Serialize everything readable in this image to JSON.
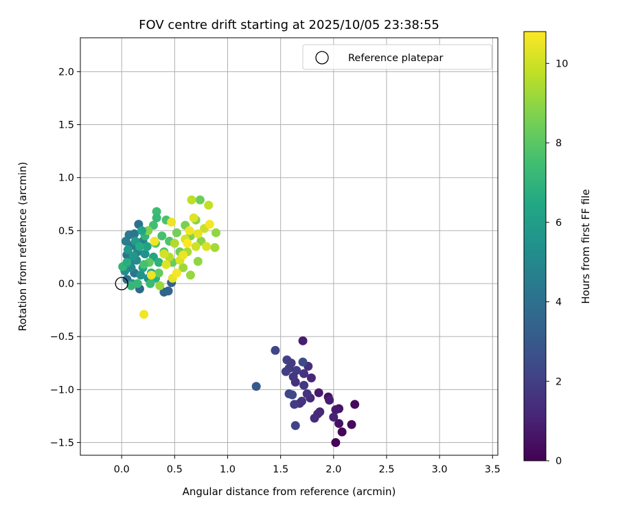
{
  "chart_data": {
    "type": "scatter",
    "title": "FOV centre drift starting at 2025/10/05 23:38:55",
    "xlabel": "Angular distance from reference (arcmin)",
    "ylabel": "Rotation from reference (arcmin)",
    "xlim": [
      -0.39,
      3.55
    ],
    "ylim": [
      -1.62,
      2.32
    ],
    "xticks": [
      0.0,
      0.5,
      1.0,
      1.5,
      2.0,
      2.5,
      3.0,
      3.5
    ],
    "xtick_labels": [
      "0.0",
      "0.5",
      "1.0",
      "1.5",
      "2.0",
      "2.5",
      "3.0",
      "3.5"
    ],
    "yticks": [
      -1.5,
      -1.0,
      -0.5,
      0.0,
      0.5,
      1.0,
      1.5,
      2.0
    ],
    "ytick_labels": [
      "−1.5",
      "−1.0",
      "−0.5",
      "0.0",
      "0.5",
      "1.0",
      "1.5",
      "2.0"
    ],
    "grid": true,
    "legend": {
      "position": "top-right",
      "entries": [
        "Reference platepar"
      ]
    },
    "reference_point": {
      "x": 0.0,
      "y": 0.0,
      "label": "Reference platepar"
    },
    "colorbar": {
      "label": "Hours from first FF file",
      "range": [
        0,
        10.8
      ],
      "ticks": [
        0,
        2,
        4,
        6,
        8,
        10
      ],
      "tick_labels": [
        "0",
        "2",
        "4",
        "6",
        "8",
        "10"
      ],
      "colormap": "viridis"
    },
    "points": [
      {
        "x": 2.02,
        "y": -1.5,
        "t": 0.1
      },
      {
        "x": 2.08,
        "y": -1.4,
        "t": 0.2
      },
      {
        "x": 2.17,
        "y": -1.33,
        "t": 0.3
      },
      {
        "x": 2.2,
        "y": -1.14,
        "t": 0.3
      },
      {
        "x": 2.05,
        "y": -1.32,
        "t": 0.5
      },
      {
        "x": 2.05,
        "y": -1.18,
        "t": 0.6
      },
      {
        "x": 2.02,
        "y": -1.19,
        "t": 0.8
      },
      {
        "x": 1.95,
        "y": -1.07,
        "t": 0.6
      },
      {
        "x": 1.96,
        "y": -1.1,
        "t": 0.9
      },
      {
        "x": 1.86,
        "y": -1.03,
        "t": 0.8
      },
      {
        "x": 1.71,
        "y": -0.54,
        "t": 0.9
      },
      {
        "x": 2.0,
        "y": -1.26,
        "t": 1.0
      },
      {
        "x": 1.87,
        "y": -1.21,
        "t": 1.2
      },
      {
        "x": 1.85,
        "y": -1.23,
        "t": 1.3
      },
      {
        "x": 1.82,
        "y": -1.27,
        "t": 1.4
      },
      {
        "x": 1.78,
        "y": -1.08,
        "t": 1.3
      },
      {
        "x": 1.79,
        "y": -0.89,
        "t": 1.2
      },
      {
        "x": 1.76,
        "y": -0.78,
        "t": 1.5
      },
      {
        "x": 1.72,
        "y": -0.85,
        "t": 1.6
      },
      {
        "x": 1.7,
        "y": -1.11,
        "t": 1.7
      },
      {
        "x": 1.72,
        "y": -0.96,
        "t": 1.8
      },
      {
        "x": 1.68,
        "y": -1.13,
        "t": 1.6
      },
      {
        "x": 1.65,
        "y": -0.82,
        "t": 1.9
      },
      {
        "x": 1.64,
        "y": -0.93,
        "t": 1.5
      },
      {
        "x": 1.62,
        "y": -0.88,
        "t": 1.7
      },
      {
        "x": 1.58,
        "y": -0.8,
        "t": 1.8
      },
      {
        "x": 1.55,
        "y": -0.83,
        "t": 2.0
      },
      {
        "x": 1.56,
        "y": -0.72,
        "t": 2.1
      },
      {
        "x": 1.6,
        "y": -0.75,
        "t": 1.9
      },
      {
        "x": 1.71,
        "y": -0.74,
        "t": 2.5
      },
      {
        "x": 1.58,
        "y": -1.04,
        "t": 2.2
      },
      {
        "x": 1.61,
        "y": -1.05,
        "t": 2.4
      },
      {
        "x": 1.63,
        "y": -1.14,
        "t": 1.9
      },
      {
        "x": 1.64,
        "y": -1.34,
        "t": 2.1
      },
      {
        "x": 1.45,
        "y": -0.63,
        "t": 2.3
      },
      {
        "x": 1.75,
        "y": -1.04,
        "t": 1.6
      },
      {
        "x": 1.27,
        "y": -0.97,
        "t": 3.0
      },
      {
        "x": 0.4,
        "y": -0.08,
        "t": 3.4
      },
      {
        "x": 0.44,
        "y": -0.07,
        "t": 3.5
      },
      {
        "x": 0.47,
        "y": 0.01,
        "t": 3.3
      },
      {
        "x": 0.17,
        "y": -0.05,
        "t": 3.6
      },
      {
        "x": 0.05,
        "y": 0.04,
        "t": 4.0
      },
      {
        "x": 0.12,
        "y": 0.1,
        "t": 4.2
      },
      {
        "x": 0.08,
        "y": 0.2,
        "t": 4.4
      },
      {
        "x": 0.05,
        "y": 0.27,
        "t": 4.1
      },
      {
        "x": 0.1,
        "y": 0.36,
        "t": 4.3
      },
      {
        "x": 0.04,
        "y": 0.4,
        "t": 4.6
      },
      {
        "x": 0.07,
        "y": 0.46,
        "t": 4.5
      },
      {
        "x": 0.12,
        "y": 0.47,
        "t": 4.2
      },
      {
        "x": 0.16,
        "y": 0.56,
        "t": 4.0
      },
      {
        "x": 0.2,
        "y": 0.4,
        "t": 4.7
      },
      {
        "x": 0.15,
        "y": 0.3,
        "t": 4.8
      },
      {
        "x": 0.09,
        "y": 0.15,
        "t": 5.0
      },
      {
        "x": 0.03,
        "y": 0.12,
        "t": 5.2
      },
      {
        "x": 0.14,
        "y": 0.22,
        "t": 5.1
      },
      {
        "x": 0.22,
        "y": 0.28,
        "t": 5.4
      },
      {
        "x": 0.18,
        "y": 0.08,
        "t": 5.5
      },
      {
        "x": 0.25,
        "y": 0.05,
        "t": 5.3
      },
      {
        "x": 0.1,
        "y": 0.0,
        "t": 5.6
      },
      {
        "x": 0.06,
        "y": 0.32,
        "t": 5.8
      },
      {
        "x": 0.13,
        "y": 0.4,
        "t": 6.0
      },
      {
        "x": 0.2,
        "y": 0.15,
        "t": 6.1
      },
      {
        "x": 0.24,
        "y": 0.35,
        "t": 6.2
      },
      {
        "x": 0.3,
        "y": 0.25,
        "t": 6.3
      },
      {
        "x": 0.28,
        "y": 0.1,
        "t": 6.5
      },
      {
        "x": 0.17,
        "y": 0.35,
        "t": 6.6
      },
      {
        "x": 0.32,
        "y": 0.05,
        "t": 6.8
      },
      {
        "x": 0.35,
        "y": 0.2,
        "t": 6.9
      },
      {
        "x": 0.22,
        "y": 0.45,
        "t": 7.0
      },
      {
        "x": 0.09,
        "y": -0.02,
        "t": 7.1
      },
      {
        "x": 0.15,
        "y": 0.0,
        "t": 7.2
      },
      {
        "x": 0.27,
        "y": 0.0,
        "t": 7.3
      },
      {
        "x": 0.33,
        "y": 0.68,
        "t": 7.4
      },
      {
        "x": 0.3,
        "y": 0.55,
        "t": 7.5
      },
      {
        "x": 0.38,
        "y": 0.45,
        "t": 7.6
      },
      {
        "x": 0.42,
        "y": 0.6,
        "t": 7.7
      },
      {
        "x": 0.45,
        "y": 0.4,
        "t": 7.8
      },
      {
        "x": 0.4,
        "y": 0.3,
        "t": 7.9
      },
      {
        "x": 0.32,
        "y": 0.38,
        "t": 8.0
      },
      {
        "x": 0.26,
        "y": 0.2,
        "t": 8.1
      },
      {
        "x": 0.35,
        "y": 0.1,
        "t": 8.2
      },
      {
        "x": 0.48,
        "y": 0.2,
        "t": 8.3
      },
      {
        "x": 0.55,
        "y": 0.3,
        "t": 8.4
      },
      {
        "x": 0.52,
        "y": 0.48,
        "t": 8.5
      },
      {
        "x": 0.6,
        "y": 0.55,
        "t": 8.6
      },
      {
        "x": 0.65,
        "y": 0.45,
        "t": 8.7
      },
      {
        "x": 0.7,
        "y": 0.6,
        "t": 8.8
      },
      {
        "x": 0.74,
        "y": 0.79,
        "t": 8.4
      },
      {
        "x": 0.75,
        "y": 0.4,
        "t": 8.9
      },
      {
        "x": 0.72,
        "y": 0.21,
        "t": 9.0
      },
      {
        "x": 0.65,
        "y": 0.08,
        "t": 9.1
      },
      {
        "x": 0.58,
        "y": 0.15,
        "t": 9.2
      },
      {
        "x": 0.88,
        "y": 0.34,
        "t": 9.3
      },
      {
        "x": 0.89,
        "y": 0.48,
        "t": 9.0
      },
      {
        "x": 0.62,
        "y": 0.3,
        "t": 9.4
      },
      {
        "x": 0.5,
        "y": 0.38,
        "t": 9.5
      },
      {
        "x": 0.45,
        "y": 0.25,
        "t": 9.6
      },
      {
        "x": 0.66,
        "y": 0.79,
        "t": 9.7
      },
      {
        "x": 0.82,
        "y": 0.74,
        "t": 9.8
      },
      {
        "x": 0.78,
        "y": 0.52,
        "t": 9.9
      },
      {
        "x": 0.7,
        "y": 0.35,
        "t": 10.0
      },
      {
        "x": 0.6,
        "y": 0.42,
        "t": 10.1
      },
      {
        "x": 0.55,
        "y": 0.22,
        "t": 10.2
      },
      {
        "x": 0.42,
        "y": 0.18,
        "t": 10.3
      },
      {
        "x": 0.48,
        "y": 0.05,
        "t": 10.4
      },
      {
        "x": 0.28,
        "y": 0.08,
        "t": 10.5
      },
      {
        "x": 0.21,
        "y": -0.29,
        "t": 10.6
      },
      {
        "x": 0.64,
        "y": 0.5,
        "t": 10.6
      },
      {
        "x": 0.72,
        "y": 0.47,
        "t": 10.4
      },
      {
        "x": 0.58,
        "y": 0.27,
        "t": 10.5
      },
      {
        "x": 0.8,
        "y": 0.35,
        "t": 10.2
      },
      {
        "x": 0.68,
        "y": 0.62,
        "t": 10.3
      },
      {
        "x": 0.52,
        "y": 0.1,
        "t": 10.7
      },
      {
        "x": 0.4,
        "y": 0.28,
        "t": 10.1
      },
      {
        "x": 0.31,
        "y": 0.4,
        "t": 10.6
      },
      {
        "x": 0.47,
        "y": 0.58,
        "t": 10.5
      },
      {
        "x": 0.83,
        "y": 0.56,
        "t": 10.7
      },
      {
        "x": 0.62,
        "y": 0.38,
        "t": 10.8
      },
      {
        "x": 0.36,
        "y": -0.02,
        "t": 9.2
      },
      {
        "x": 0.25,
        "y": 0.5,
        "t": 8.7
      },
      {
        "x": 0.33,
        "y": 0.62,
        "t": 7.2
      },
      {
        "x": 0.21,
        "y": 0.18,
        "t": 7.6
      },
      {
        "x": 0.19,
        "y": 0.5,
        "t": 6.4
      },
      {
        "x": 0.11,
        "y": 0.26,
        "t": 5.7
      },
      {
        "x": 0.01,
        "y": 0.16,
        "t": 7.0
      },
      {
        "x": 0.05,
        "y": 0.2,
        "t": 6.7
      }
    ]
  }
}
